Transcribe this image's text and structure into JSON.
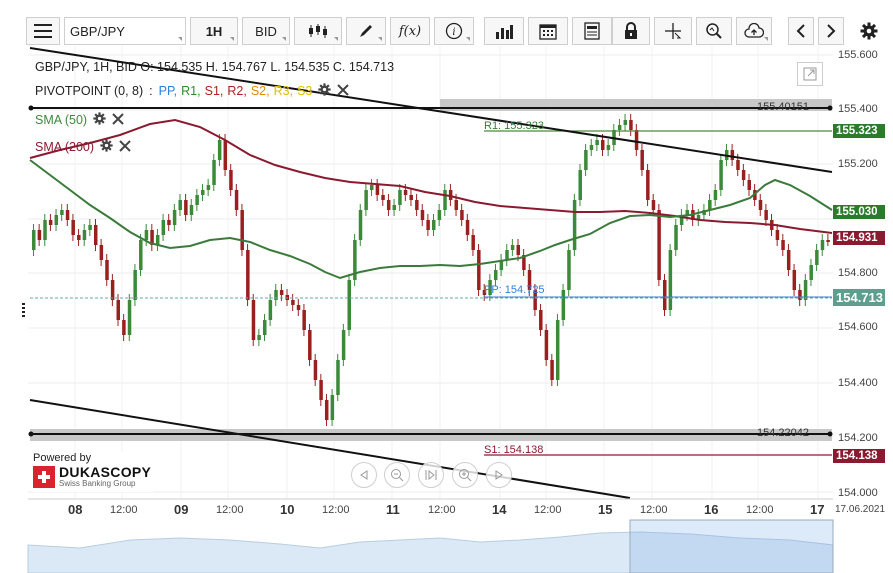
{
  "toolbar": {
    "symbol": "GBP/JPY",
    "interval": "1H",
    "price_side": "BID",
    "function_label": "f(x)"
  },
  "chart_info": {
    "summary": "GBP/JPY, 1H, BID   O: 154.535 H. 154.767 L. 154.535 C. 154.713"
  },
  "indicators": {
    "pivot": {
      "name": "PIVOTPOINT (0, 8)",
      "levels": [
        {
          "label": "PP,",
          "color": "#2f7fd6"
        },
        {
          "label": "R1,",
          "color": "#2f8a2f"
        },
        {
          "label": "S1,",
          "color": "#b02020"
        },
        {
          "label": "R2,",
          "color": "#b02020"
        },
        {
          "label": "S2,",
          "color": "#e08a00"
        },
        {
          "label": "R3,",
          "color": "#e0c000"
        },
        {
          "label": "S3",
          "color": "#e0c000"
        }
      ]
    },
    "sma50": {
      "name": "SMA (50)",
      "color": "#3b8a3b"
    },
    "sma200": {
      "name": "SMA (200)",
      "color": "#8a1a30"
    }
  },
  "chart_lines": {
    "upper_level": "155.40151",
    "lower_level": "154.22042",
    "r1": "R1: 155.323",
    "pp": "PP: 154.725",
    "s1": "S1: 154.138"
  },
  "price_tags": {
    "r1": {
      "value": "155.323",
      "color": "#2c7a2c"
    },
    "sma50": {
      "value": "155.030",
      "color": "#2c7a2c"
    },
    "sma200": {
      "value": "154.931",
      "color": "#8a1a30"
    },
    "current": {
      "value": "154.713",
      "color": "#5e9e8e"
    },
    "s1": {
      "value": "154.138",
      "color": "#8a1a30"
    }
  },
  "y_axis": [
    "155.600",
    "155.400",
    "155.200",
    "154.800",
    "154.600",
    "154.400",
    "154.200",
    "154.000"
  ],
  "x_axis": {
    "days": [
      "08",
      "09",
      "10",
      "11",
      "14",
      "15",
      "16",
      "17"
    ],
    "time": "12:00",
    "date_end": "17.06.2021"
  },
  "branding": {
    "powered_by": "Powered by",
    "company": "DUKASCOPY",
    "tagline": "Swiss Banking Group"
  },
  "chart_data": {
    "type": "candlestick",
    "symbol": "GBP/JPY",
    "interval": "1H",
    "side": "BID",
    "ohlc_last": {
      "open": 154.535,
      "high": 154.767,
      "low": 154.535,
      "close": 154.713
    },
    "ylim": [
      154.0,
      155.6
    ],
    "pivot_levels": {
      "R1": 155.323,
      "PP": 154.725,
      "S1": 154.138
    },
    "horizontal_levels": [
      155.40151,
      154.22042
    ],
    "sma": {
      "SMA (50)": 155.03,
      "SMA (200)": 154.931
    }
  }
}
